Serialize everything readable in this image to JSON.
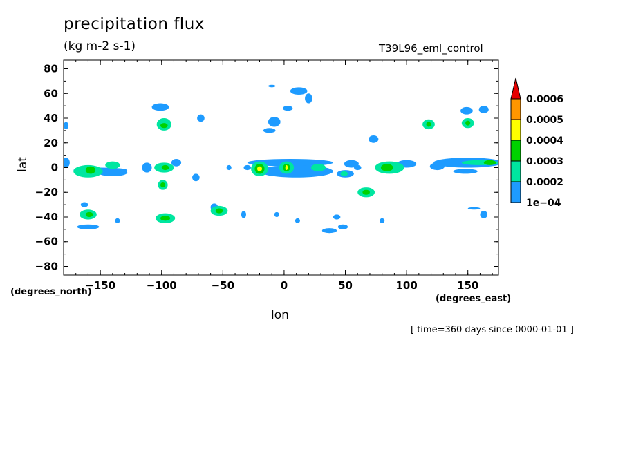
{
  "header": {
    "title": "precipitation flux",
    "units": "(kg m-2 s-1)",
    "experiment": "T39L96_eml_control",
    "time_info": "[ time=360 days since 0000-01-01 ]"
  },
  "chart_data": {
    "type": "heatmap",
    "title": "precipitation flux",
    "subtitle": "(kg m-2 s-1)",
    "xlabel": "lon",
    "xunits": "(degrees_east)",
    "ylabel": "lat",
    "yunits": "(degrees_north)",
    "xlim": [
      -180,
      175
    ],
    "ylim": [
      -87,
      87
    ],
    "xticks": [
      -150,
      -100,
      -50,
      0,
      50,
      100,
      150
    ],
    "xtick_labels": [
      "−150",
      "−100",
      "−50",
      "0",
      "50",
      "100",
      "150"
    ],
    "yticks": [
      80,
      60,
      40,
      20,
      0,
      -20,
      -40,
      -60,
      -80
    ],
    "ytick_labels": [
      "80",
      "60",
      "40",
      "20",
      "0",
      "−20",
      "−40",
      "−60",
      "−80"
    ],
    "colorbar": {
      "levels": [
        0.0001,
        0.0002,
        0.0003,
        0.0004,
        0.0005,
        0.0006
      ],
      "labels": [
        "1e−04",
        "0.0002",
        "0.0003",
        "0.0004",
        "0.0005",
        "0.0006"
      ],
      "colors": [
        "#1e9bff",
        "#00e6a0",
        "#00d200",
        "#ffff00",
        "#ff9600",
        "#e60000"
      ],
      "extend": "max"
    },
    "blobs": [
      {
        "lon": -178,
        "lat": 4,
        "rlon": 3,
        "rlat": 4,
        "level": 0
      },
      {
        "lon": -178,
        "lat": 34,
        "rlon": 2,
        "rlat": 3,
        "level": 0
      },
      {
        "lon": -160,
        "lat": -3,
        "rlon": 12,
        "rlat": 5,
        "level": 1
      },
      {
        "lon": -158,
        "lat": -2,
        "rlon": 4,
        "rlat": 3,
        "level": 2
      },
      {
        "lon": -140,
        "lat": -4,
        "rlon": 12,
        "rlat": 3,
        "level": 0
      },
      {
        "lon": -140,
        "lat": 2,
        "rlon": 6,
        "rlat": 3,
        "level": 1
      },
      {
        "lon": -150,
        "lat": -2,
        "rlon": 22,
        "rlat": 2,
        "level": 0
      },
      {
        "lon": -160,
        "lat": -38,
        "rlon": 7,
        "rlat": 4,
        "level": 1
      },
      {
        "lon": -159,
        "lat": -38,
        "rlon": 3,
        "rlat": 2,
        "level": 2
      },
      {
        "lon": -163,
        "lat": -30,
        "rlon": 3,
        "rlat": 2,
        "level": 0
      },
      {
        "lon": -160,
        "lat": -48,
        "rlon": 9,
        "rlat": 2,
        "level": 0
      },
      {
        "lon": -136,
        "lat": -43,
        "rlon": 2,
        "rlat": 2,
        "level": 0
      },
      {
        "lon": -112,
        "lat": 0,
        "rlon": 4,
        "rlat": 4,
        "level": 0
      },
      {
        "lon": -98,
        "lat": 0,
        "rlon": 8,
        "rlat": 4,
        "level": 1
      },
      {
        "lon": -97,
        "lat": 0,
        "rlon": 3,
        "rlat": 2,
        "level": 2
      },
      {
        "lon": -88,
        "lat": 4,
        "rlon": 4,
        "rlat": 3,
        "level": 0
      },
      {
        "lon": -99,
        "lat": -14,
        "rlon": 4,
        "rlat": 4,
        "level": 1
      },
      {
        "lon": -99,
        "lat": -14,
        "rlon": 2,
        "rlat": 2,
        "level": 2
      },
      {
        "lon": -97,
        "lat": -41,
        "rlon": 8,
        "rlat": 4,
        "level": 1
      },
      {
        "lon": -97,
        "lat": -41,
        "rlon": 4,
        "rlat": 2,
        "level": 2
      },
      {
        "lon": -98,
        "lat": 35,
        "rlon": 6,
        "rlat": 5,
        "level": 1
      },
      {
        "lon": -98,
        "lat": 34,
        "rlon": 3,
        "rlat": 2,
        "level": 2
      },
      {
        "lon": -101,
        "lat": 49,
        "rlon": 7,
        "rlat": 3,
        "level": 0
      },
      {
        "lon": -68,
        "lat": 40,
        "rlon": 3,
        "rlat": 3,
        "level": 0
      },
      {
        "lon": -72,
        "lat": -8,
        "rlon": 3,
        "rlat": 3,
        "level": 0
      },
      {
        "lon": -53,
        "lat": -35,
        "rlon": 7,
        "rlat": 4,
        "level": 1
      },
      {
        "lon": -53,
        "lat": -35,
        "rlon": 3,
        "rlat": 2,
        "level": 2
      },
      {
        "lon": -57,
        "lat": -32,
        "rlon": 3,
        "rlat": 3,
        "level": 0
      },
      {
        "lon": -33,
        "lat": -38,
        "rlon": 2,
        "rlat": 3,
        "level": 0
      },
      {
        "lon": -45,
        "lat": 0,
        "rlon": 2,
        "rlat": 2,
        "level": 0
      },
      {
        "lon": -30,
        "lat": 0,
        "rlon": 3,
        "rlat": 2,
        "level": 0
      },
      {
        "lon": -20,
        "lat": -1,
        "rlon": 7,
        "rlat": 6,
        "level": 1
      },
      {
        "lon": -20,
        "lat": -1,
        "rlon": 4,
        "rlat": 4,
        "level": 2
      },
      {
        "lon": -20,
        "lat": -1,
        "rlon": 2,
        "rlat": 2,
        "level": 3
      },
      {
        "lon": 2,
        "lat": 0,
        "rlon": 6,
        "rlat": 5,
        "level": 1
      },
      {
        "lon": 2,
        "lat": 0,
        "rlon": 3,
        "rlat": 3,
        "level": 2
      },
      {
        "lon": 2,
        "lat": 0,
        "rlon": 1,
        "rlat": 2,
        "level": 3
      },
      {
        "lon": 5,
        "lat": 4,
        "rlon": 35,
        "rlat": 3,
        "level": 0
      },
      {
        "lon": 10,
        "lat": -3,
        "rlon": 30,
        "rlat": 5,
        "level": 0
      },
      {
        "lon": 28,
        "lat": 0,
        "rlon": 6,
        "rlat": 3,
        "level": 1
      },
      {
        "lon": 50,
        "lat": -5,
        "rlon": 7,
        "rlat": 3,
        "level": 0
      },
      {
        "lon": 49,
        "lat": -5,
        "rlon": 3,
        "rlat": 2,
        "level": 1
      },
      {
        "lon": 55,
        "lat": 3,
        "rlon": 6,
        "rlat": 3,
        "level": 0
      },
      {
        "lon": -8,
        "lat": 37,
        "rlon": 5,
        "rlat": 4,
        "level": 0
      },
      {
        "lon": -12,
        "lat": 30,
        "rlon": 5,
        "rlat": 2,
        "level": 0
      },
      {
        "lon": 3,
        "lat": 48,
        "rlon": 4,
        "rlat": 2,
        "level": 0
      },
      {
        "lon": 12,
        "lat": 62,
        "rlon": 7,
        "rlat": 3,
        "level": 0
      },
      {
        "lon": 20,
        "lat": 56,
        "rlon": 3,
        "rlat": 4,
        "level": 0
      },
      {
        "lon": -10,
        "lat": 66,
        "rlon": 3,
        "rlat": 1,
        "level": 0
      },
      {
        "lon": -6,
        "lat": -38,
        "rlon": 2,
        "rlat": 2,
        "level": 0
      },
      {
        "lon": 11,
        "lat": -43,
        "rlon": 2,
        "rlat": 2,
        "level": 0
      },
      {
        "lon": 37,
        "lat": -51,
        "rlon": 6,
        "rlat": 2,
        "level": 0
      },
      {
        "lon": 48,
        "lat": -48,
        "rlon": 4,
        "rlat": 2,
        "level": 0
      },
      {
        "lon": 43,
        "lat": -40,
        "rlon": 3,
        "rlat": 2,
        "level": 0
      },
      {
        "lon": 67,
        "lat": -20,
        "rlon": 7,
        "rlat": 4,
        "level": 1
      },
      {
        "lon": 67,
        "lat": -20,
        "rlon": 3,
        "rlat": 2,
        "level": 2
      },
      {
        "lon": 73,
        "lat": 23,
        "rlon": 4,
        "rlat": 3,
        "level": 0
      },
      {
        "lon": 60,
        "lat": 0,
        "rlon": 3,
        "rlat": 2,
        "level": 0
      },
      {
        "lon": 86,
        "lat": 0,
        "rlon": 12,
        "rlat": 5,
        "level": 1
      },
      {
        "lon": 84,
        "lat": 0,
        "rlon": 5,
        "rlat": 3,
        "level": 2
      },
      {
        "lon": 100,
        "lat": 3,
        "rlon": 8,
        "rlat": 3,
        "level": 0
      },
      {
        "lon": 80,
        "lat": -43,
        "rlon": 2,
        "rlat": 2,
        "level": 0
      },
      {
        "lon": 118,
        "lat": 35,
        "rlon": 5,
        "rlat": 4,
        "level": 1
      },
      {
        "lon": 118,
        "lat": 35,
        "rlon": 2,
        "rlat": 2,
        "level": 2
      },
      {
        "lon": 149,
        "lat": 46,
        "rlon": 5,
        "rlat": 3,
        "level": 0
      },
      {
        "lon": 163,
        "lat": 47,
        "rlon": 4,
        "rlat": 3,
        "level": 0
      },
      {
        "lon": 150,
        "lat": 36,
        "rlon": 5,
        "rlat": 4,
        "level": 1
      },
      {
        "lon": 150,
        "lat": 36,
        "rlon": 2,
        "rlat": 2,
        "level": 2
      },
      {
        "lon": 150,
        "lat": 4,
        "rlon": 28,
        "rlat": 4,
        "level": 0
      },
      {
        "lon": 160,
        "lat": 4,
        "rlon": 15,
        "rlat": 2,
        "level": 1
      },
      {
        "lon": 168,
        "lat": 4,
        "rlon": 5,
        "rlat": 2,
        "level": 2
      },
      {
        "lon": 125,
        "lat": 1,
        "rlon": 6,
        "rlat": 3,
        "level": 0
      },
      {
        "lon": 148,
        "lat": -3,
        "rlon": 10,
        "rlat": 2,
        "level": 0
      },
      {
        "lon": 155,
        "lat": -33,
        "rlon": 5,
        "rlat": 1,
        "level": 0
      },
      {
        "lon": 163,
        "lat": -38,
        "rlon": 3,
        "rlat": 3,
        "level": 0
      }
    ]
  }
}
